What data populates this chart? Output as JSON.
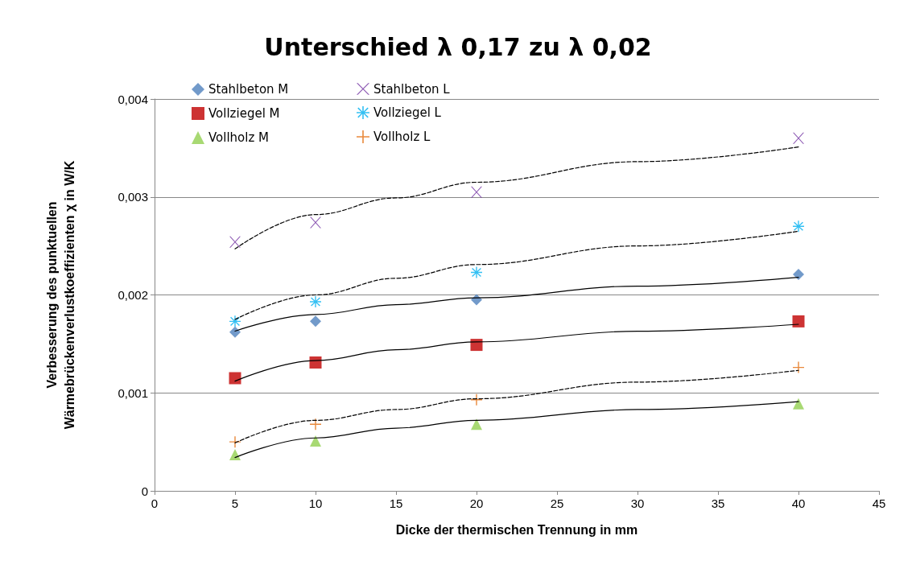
{
  "chart_data": {
    "type": "scatter",
    "title": "Unterschied λ 0,17 zu λ 0,02",
    "xlabel": "Dicke der thermischen Trennung in mm",
    "ylabel": "Verbesserung des punktuellen\nWärmebrückenverlustkoeffizienten χ in W/K",
    "x": [
      5,
      10,
      20,
      40
    ],
    "xlim": [
      0,
      45
    ],
    "xticks": [
      0,
      5,
      10,
      15,
      20,
      25,
      30,
      35,
      40,
      45
    ],
    "ylim": [
      0,
      0.004
    ],
    "yticks": [
      {
        "value": 0,
        "label": "0"
      },
      {
        "value": 0.001,
        "label": "0,001"
      },
      {
        "value": 0.002,
        "label": "0,002"
      },
      {
        "value": 0.003,
        "label": "0,003"
      },
      {
        "value": 0.004,
        "label": "0,004"
      }
    ],
    "grid": "y",
    "legend": "top left",
    "series": [
      {
        "name": "Stahlbeton M",
        "color": "#4f81bd",
        "marker": "diamond",
        "values": [
          0.00162,
          0.00173,
          0.00195,
          0.00221
        ]
      },
      {
        "name": "Vollziegel M",
        "color": "#c00000",
        "marker": "square",
        "values": [
          0.00115,
          0.00131,
          0.00149,
          0.00173
        ]
      },
      {
        "name": "Vollholz M",
        "color": "#92d050",
        "marker": "triangle",
        "values": [
          0.00037,
          0.00051,
          0.00068,
          0.00089
        ]
      },
      {
        "name": "Stahlbeton L",
        "color": "#7030a0",
        "marker": "x",
        "values": [
          0.00254,
          0.00274,
          0.00305,
          0.0036
        ]
      },
      {
        "name": "Vollziegel L",
        "color": "#00b0f0",
        "marker": "star",
        "values": [
          0.00173,
          0.00193,
          0.00223,
          0.0027
        ]
      },
      {
        "name": "Vollholz L",
        "color": "#e46c0a",
        "marker": "cross",
        "values": [
          0.0005,
          0.00068,
          0.00093,
          0.00126
        ]
      },
      {
        "type": "line",
        "color": "#000000",
        "marker": "none",
        "line_style": "solid",
        "x": [
          5,
          10,
          15,
          20,
          30,
          40
        ],
        "values": [
          0.00163,
          0.0018,
          0.0019,
          0.00197,
          0.00209,
          0.00218
        ]
      },
      {
        "type": "line",
        "color": "#000000",
        "marker": "none",
        "line_style": "solid",
        "x": [
          5,
          10,
          15,
          20,
          30,
          40
        ],
        "values": [
          0.00112,
          0.00133,
          0.00144,
          0.00152,
          0.00163,
          0.0017
        ]
      },
      {
        "type": "line",
        "color": "#000000",
        "marker": "none",
        "line_style": "solid",
        "x": [
          5,
          10,
          15,
          20,
          30,
          40
        ],
        "values": [
          0.00034,
          0.00054,
          0.00064,
          0.00072,
          0.00083,
          0.00091
        ]
      },
      {
        "type": "line",
        "color": "#000000",
        "marker": "none",
        "line_style": "dashed",
        "x": [
          5,
          10,
          15,
          20,
          30,
          40
        ],
        "values": [
          0.00247,
          0.00282,
          0.00299,
          0.00315,
          0.00336,
          0.00351
        ]
      },
      {
        "type": "line",
        "color": "#000000",
        "marker": "none",
        "line_style": "dashed",
        "x": [
          5,
          10,
          15,
          20,
          30,
          40
        ],
        "values": [
          0.00175,
          0.002,
          0.00217,
          0.00231,
          0.0025,
          0.00265
        ]
      },
      {
        "type": "line",
        "color": "#000000",
        "marker": "none",
        "line_style": "dashed",
        "x": [
          5,
          10,
          15,
          20,
          30,
          40
        ],
        "values": [
          0.00049,
          0.00072,
          0.00083,
          0.00094,
          0.00111,
          0.00123
        ]
      }
    ]
  }
}
